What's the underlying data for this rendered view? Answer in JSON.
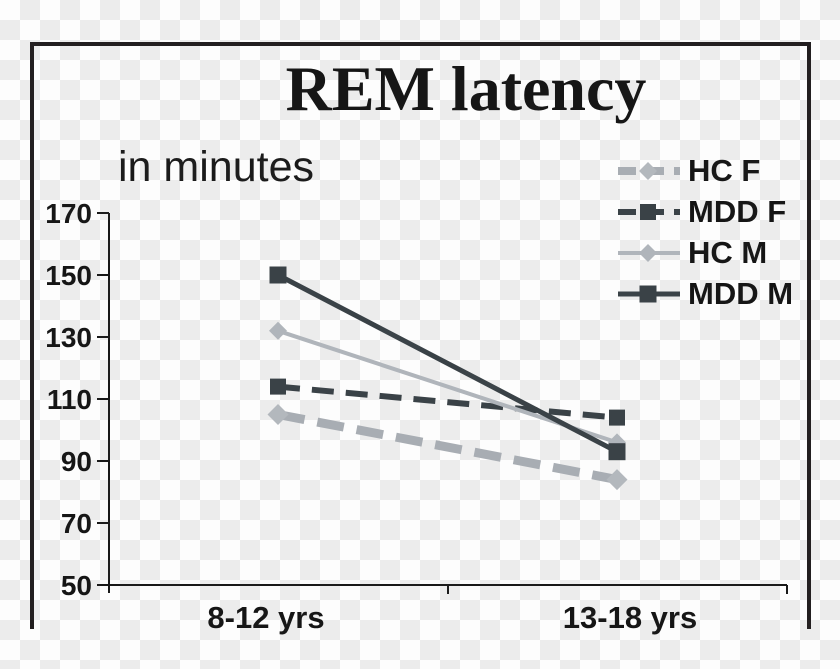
{
  "title": "REM latency",
  "subtitle": "in minutes",
  "colors": {
    "text": "#161616",
    "axis": "#1a1a1a",
    "frame": "#231f20",
    "checker_gray": "#ececec",
    "checker_white": "#fdfdfd",
    "dark_series": "#3a4247",
    "light_series": "#b0b5bb"
  },
  "chart_data": {
    "type": "line",
    "title": "REM latency",
    "ylabel": "in minutes",
    "categories": [
      "8-12 yrs",
      "13-18 yrs"
    ],
    "series": [
      {
        "name": "HC F",
        "values": [
          105,
          84
        ],
        "color": "#a8adb3",
        "marker": "diamond",
        "marker_color": "#b3b8bd",
        "marker_size": 21,
        "dash": "27 13",
        "width": 9
      },
      {
        "name": "MDD F",
        "values": [
          114,
          104
        ],
        "color": "#3a4247",
        "marker": "square",
        "marker_color": "#3a4247",
        "marker_size": 16,
        "dash": "22 12",
        "width": 6
      },
      {
        "name": "HC M",
        "values": [
          132,
          96
        ],
        "color": "#b0b5bb",
        "marker": "diamond",
        "marker_color": "#b0b5bb",
        "marker_size": 18,
        "dash": "",
        "width": 4
      },
      {
        "name": "MDD M",
        "values": [
          150,
          93
        ],
        "color": "#3a4247",
        "marker": "square",
        "marker_color": "#3a4247",
        "marker_size": 17,
        "dash": "",
        "width": 5
      }
    ],
    "yticks": [
      170,
      150,
      130,
      110,
      90,
      70,
      50
    ],
    "ylim": [
      50,
      170
    ],
    "grid": false,
    "legend_position": "top-right",
    "legend_labels": [
      "HC F",
      "MDD F",
      "HC M",
      "MDD M"
    ]
  }
}
